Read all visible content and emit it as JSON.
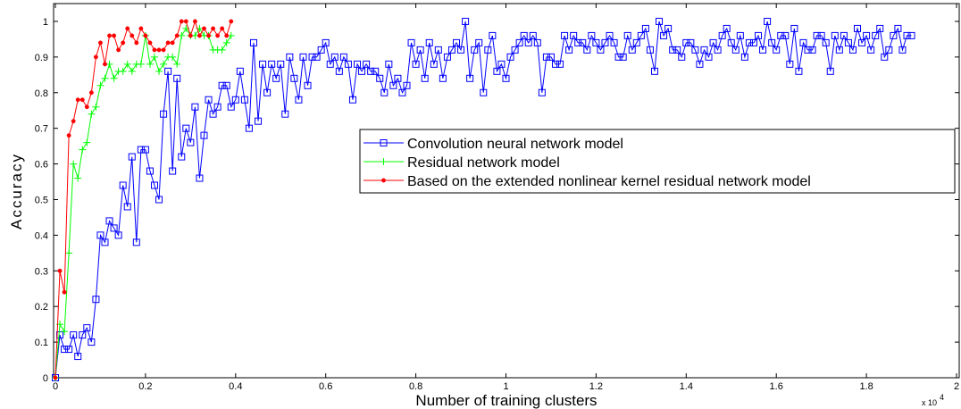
{
  "chart_data": {
    "type": "line",
    "xlabel": "Number of training clusters",
    "ylabel": "Accuracy",
    "x_multiplier_label": "x 10",
    "x_multiplier_exp": "4",
    "xlim": [
      0,
      20000
    ],
    "ylim": [
      0,
      1.05
    ],
    "x_ticks": [
      0,
      2000,
      4000,
      6000,
      8000,
      10000,
      12000,
      14000,
      16000,
      18000,
      20000
    ],
    "x_tick_labels": [
      "0",
      "0.2",
      "0.4",
      "0.6",
      "0.8",
      "1",
      "1.2",
      "1.4",
      "1.6",
      "1.8",
      "2"
    ],
    "y_ticks": [
      0,
      0.1,
      0.2,
      0.3,
      0.4,
      0.5,
      0.6,
      0.7,
      0.8,
      0.9,
      1.0
    ],
    "y_tick_labels": [
      "0",
      "0.1",
      "0.2",
      "0.3",
      "0.4",
      "0.5",
      "0.6",
      "0.7",
      "0.8",
      "0.9",
      "1"
    ],
    "legend_position": "center-right",
    "grid": false,
    "series": [
      {
        "name": "Convolution neural network model",
        "color": "#0000ff",
        "marker": "square",
        "x_start": 0,
        "x_step": 100,
        "values": [
          0,
          0.12,
          0.08,
          0.08,
          0.12,
          0.06,
          0.12,
          0.14,
          0.1,
          0.22,
          0.4,
          0.38,
          0.44,
          0.42,
          0.4,
          0.54,
          0.48,
          0.62,
          0.38,
          0.64,
          0.64,
          0.58,
          0.54,
          0.5,
          0.74,
          0.86,
          0.58,
          0.84,
          0.62,
          0.7,
          0.66,
          0.76,
          0.56,
          0.68,
          0.78,
          0.74,
          0.76,
          0.82,
          0.82,
          0.76,
          0.78,
          0.86,
          0.78,
          0.7,
          0.94,
          0.72,
          0.88,
          0.8,
          0.88,
          0.84,
          0.88,
          0.74,
          0.9,
          0.84,
          0.78,
          0.9,
          0.82,
          0.9,
          0.9,
          0.92,
          0.94,
          0.88,
          0.9,
          0.86,
          0.9,
          0.88,
          0.78,
          0.88,
          0.86,
          0.88,
          0.86,
          0.86,
          0.84,
          0.8,
          0.88,
          0.82,
          0.84,
          0.8,
          0.82,
          0.94,
          0.88,
          0.92,
          0.84,
          0.94,
          0.88,
          0.92,
          0.84,
          0.9,
          0.92,
          0.94,
          0.92,
          1.0,
          0.84,
          0.92,
          0.94,
          0.8,
          0.92,
          0.96,
          0.86,
          0.88,
          0.84,
          0.9,
          0.92,
          0.94,
          0.96,
          0.94,
          0.96,
          0.94,
          0.8,
          0.9,
          0.9,
          0.88,
          0.88,
          0.96,
          0.92,
          0.96,
          0.94,
          0.94,
          0.92,
          0.96,
          0.94,
          0.92,
          0.94,
          0.96,
          0.94,
          0.9,
          0.9,
          0.96,
          0.92,
          0.94,
          0.96,
          0.98,
          0.92,
          0.86,
          1.0,
          0.96,
          0.98,
          0.92,
          0.92,
          0.9,
          0.94,
          0.94,
          0.92,
          0.88,
          0.92,
          0.9,
          0.94,
          0.92,
          0.96,
          0.98,
          0.94,
          0.92,
          0.96,
          0.9,
          0.94,
          0.94,
          0.96,
          0.92,
          1.0,
          0.94,
          0.92,
          0.96,
          0.96,
          0.88,
          0.98,
          0.86,
          0.94,
          0.92,
          0.92,
          0.96,
          0.96,
          0.94,
          0.86,
          0.96,
          0.92,
          0.96,
          0.94,
          0.92,
          0.98,
          0.94,
          0.96,
          0.92,
          0.96,
          0.98,
          0.9,
          0.92,
          0.96,
          0.98,
          0.92,
          0.96,
          0.96
        ]
      },
      {
        "name": "Residual network model",
        "color": "#00ff00",
        "marker": "plus",
        "x_start": 0,
        "x_step": 100,
        "values": [
          0,
          0.15,
          0.13,
          0.35,
          0.6,
          0.56,
          0.64,
          0.66,
          0.74,
          0.76,
          0.82,
          0.84,
          0.88,
          0.84,
          0.86,
          0.86,
          0.88,
          0.86,
          0.88,
          0.88,
          0.96,
          0.88,
          0.9,
          0.86,
          0.88,
          0.9,
          0.9,
          0.88,
          0.96,
          0.98,
          0.96,
          0.96,
          0.98,
          0.96,
          0.96,
          0.92,
          0.92,
          0.92,
          0.94,
          0.96
        ]
      },
      {
        "name": "Based on the extended nonlinear kernel residual network model",
        "color": "#ff0000",
        "marker": "dot",
        "x_start": 0,
        "x_step": 100,
        "values": [
          0,
          0.3,
          0.24,
          0.68,
          0.72,
          0.78,
          0.78,
          0.76,
          0.8,
          0.9,
          0.94,
          0.88,
          0.96,
          0.96,
          0.92,
          0.94,
          0.98,
          0.96,
          0.94,
          0.98,
          0.96,
          0.94,
          0.92,
          0.92,
          0.92,
          0.94,
          0.94,
          0.96,
          1.0,
          1.0,
          0.96,
          1.0,
          0.96,
          0.98,
          0.96,
          0.98,
          0.96,
          0.98,
          0.96,
          1.0
        ]
      }
    ]
  }
}
